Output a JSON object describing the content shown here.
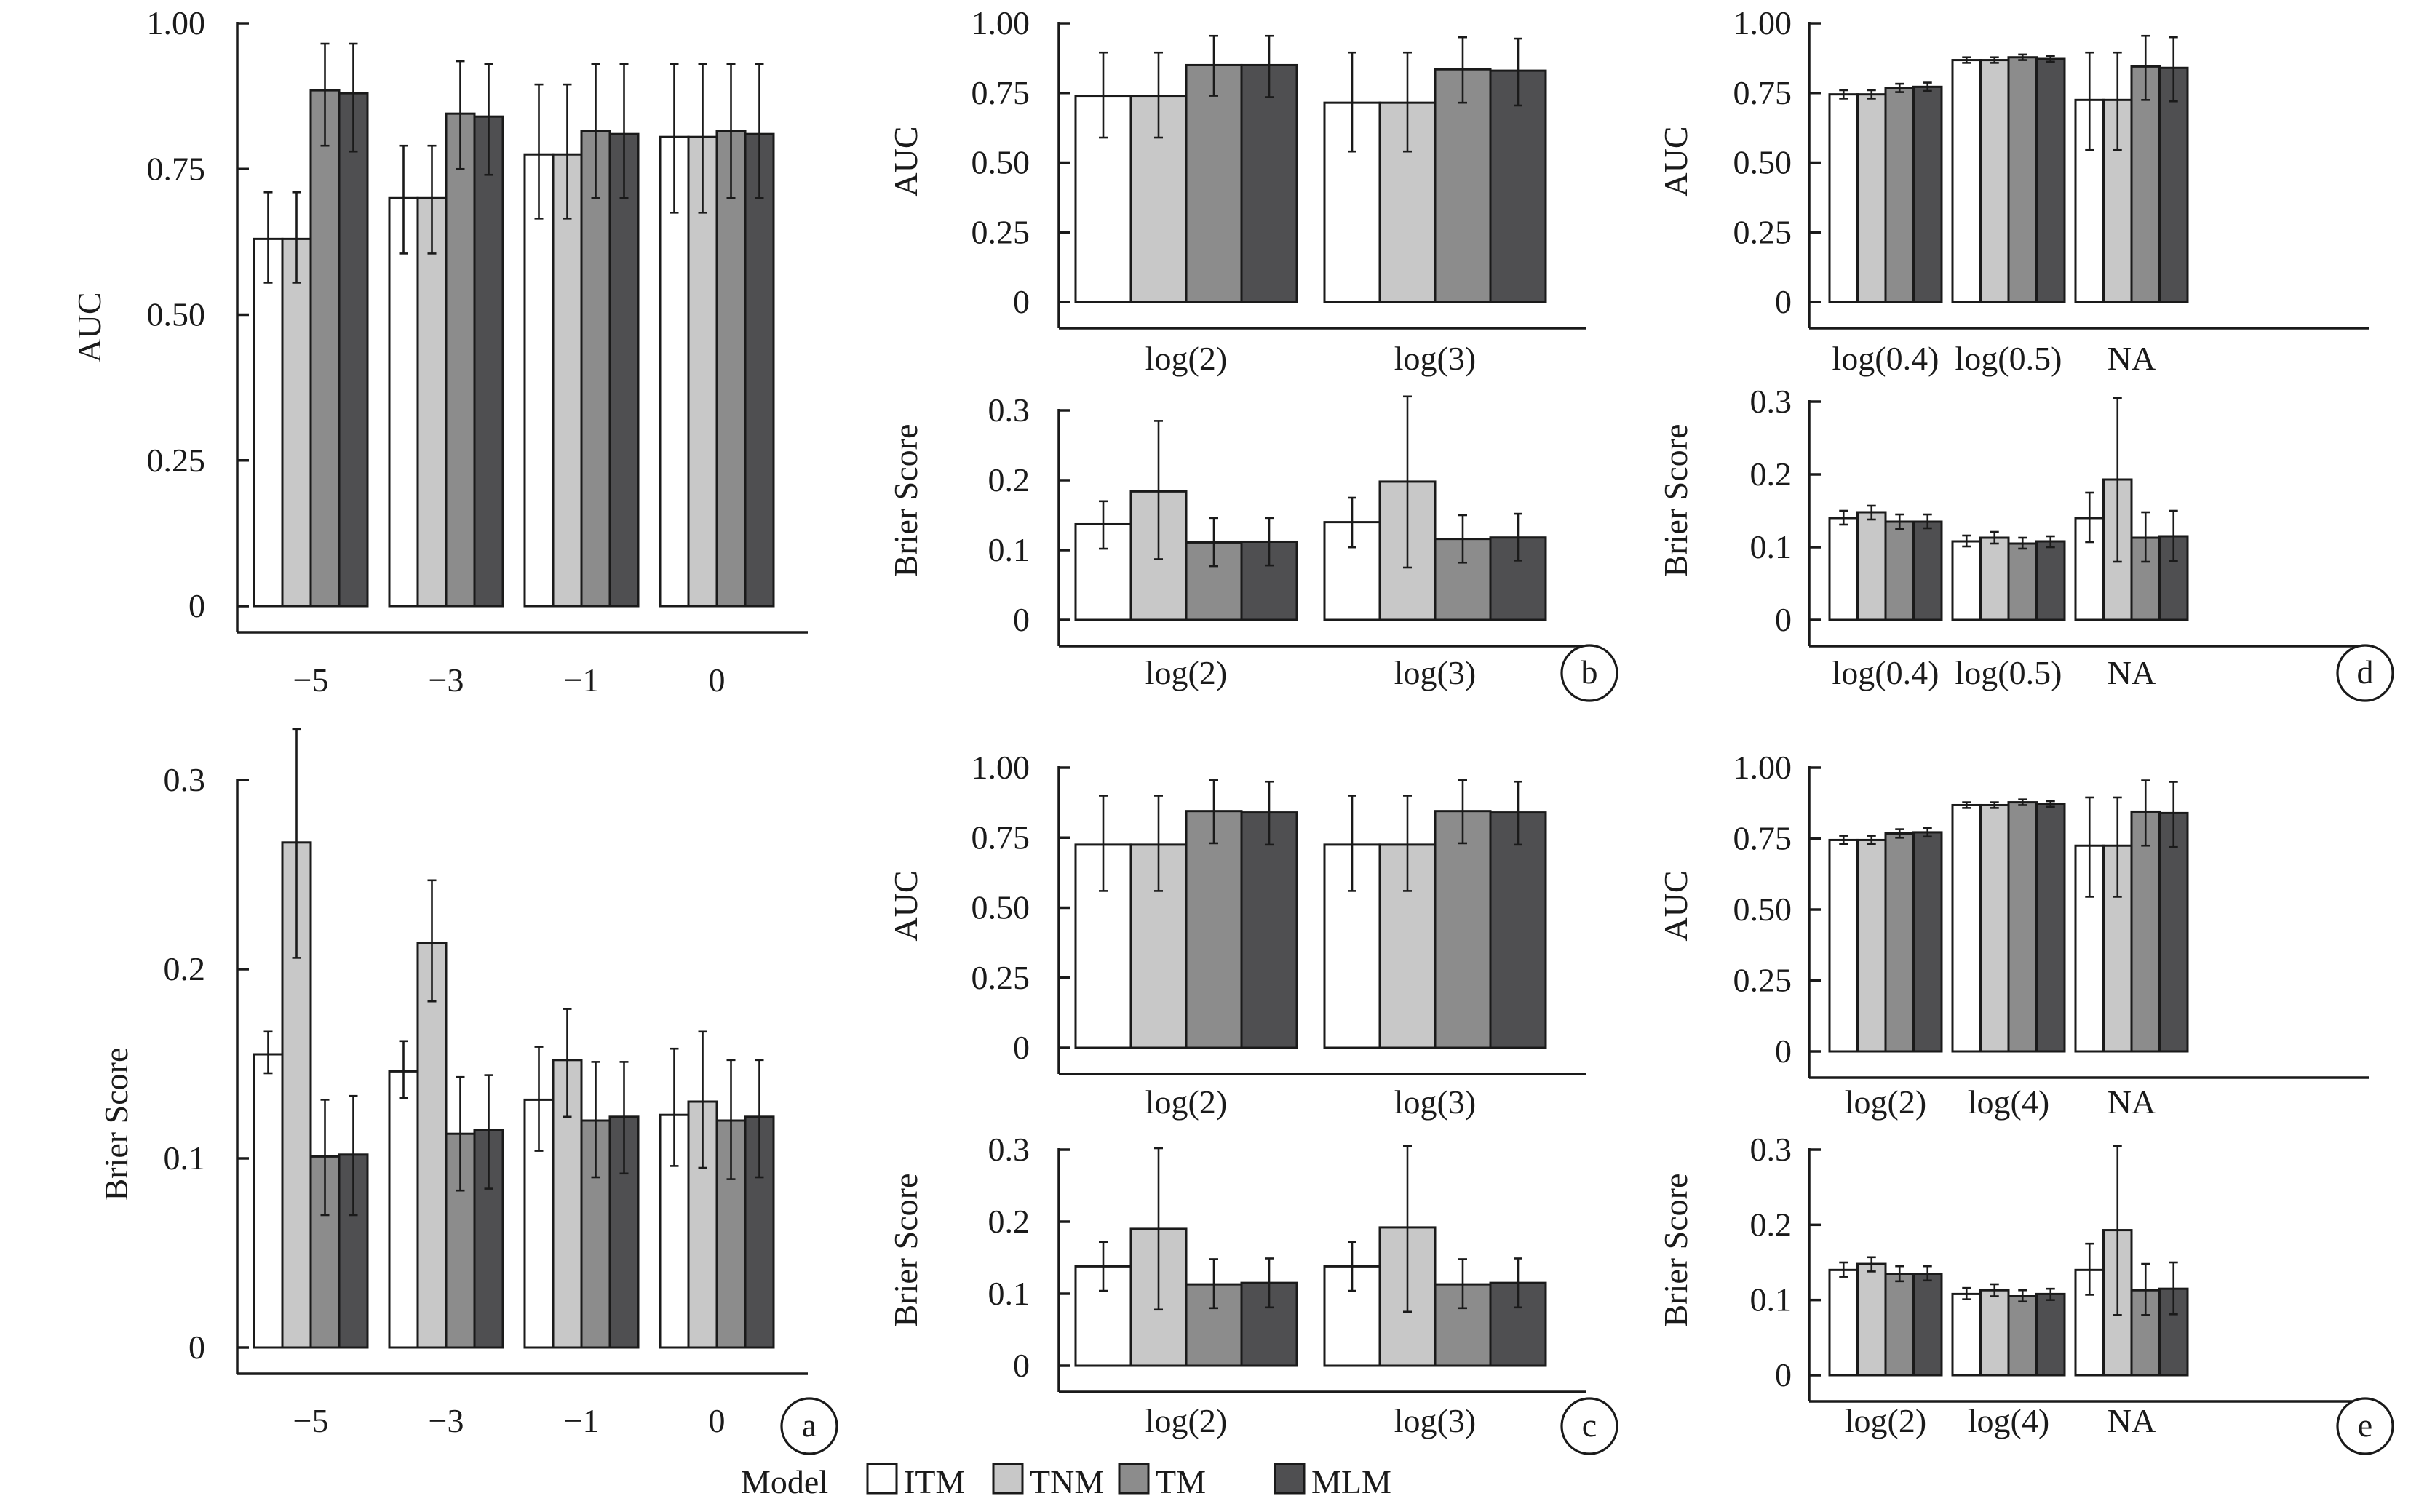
{
  "colors": {
    "ITM": "#ffffff",
    "TNM": "#c8c8c8",
    "TM": "#8c8c8c",
    "MLM": "#4f4f51"
  },
  "legend": {
    "title": "Model",
    "items": [
      "ITM",
      "TNM",
      "TM",
      "MLM"
    ]
  },
  "chart_data": [
    {
      "panel": "a",
      "metric": "AUC",
      "type": "bar",
      "ylabel": "AUC",
      "ylim": [
        0,
        1
      ],
      "yticks": [
        "0",
        "0.25",
        "0.50",
        "0.75",
        "1.00"
      ],
      "categories": [
        "−5",
        "−3",
        "−1",
        "0"
      ],
      "series": [
        {
          "name": "ITM",
          "values": [
            0.63,
            0.7,
            0.775,
            0.805
          ],
          "low": [
            0.555,
            0.605,
            0.665,
            0.675
          ],
          "high": [
            0.71,
            0.79,
            0.895,
            0.93
          ]
        },
        {
          "name": "TNM",
          "values": [
            0.63,
            0.7,
            0.775,
            0.805
          ],
          "low": [
            0.555,
            0.605,
            0.665,
            0.675
          ],
          "high": [
            0.71,
            0.79,
            0.895,
            0.93
          ]
        },
        {
          "name": "TM",
          "values": [
            0.885,
            0.845,
            0.815,
            0.815
          ],
          "low": [
            0.79,
            0.75,
            0.7,
            0.7
          ],
          "high": [
            0.965,
            0.935,
            0.93,
            0.93
          ]
        },
        {
          "name": "MLM",
          "values": [
            0.88,
            0.84,
            0.81,
            0.81
          ],
          "low": [
            0.78,
            0.74,
            0.7,
            0.7
          ],
          "high": [
            0.965,
            0.93,
            0.93,
            0.93
          ]
        }
      ]
    },
    {
      "panel": "a",
      "metric": "Brier Score",
      "type": "bar",
      "ylabel": "Brier Score",
      "ylim": [
        0,
        0.3
      ],
      "yticks": [
        "0",
        "0.1",
        "0.2",
        "0.3"
      ],
      "categories": [
        "−5",
        "−3",
        "−1",
        "0"
      ],
      "series": [
        {
          "name": "ITM",
          "values": [
            0.155,
            0.146,
            0.131,
            0.123
          ],
          "low": [
            0.145,
            0.132,
            0.104,
            0.096
          ],
          "high": [
            0.167,
            0.162,
            0.159,
            0.158
          ]
        },
        {
          "name": "TNM",
          "values": [
            0.267,
            0.214,
            0.152,
            0.13
          ],
          "low": [
            0.206,
            0.183,
            0.122,
            0.095
          ],
          "high": [
            0.327,
            0.247,
            0.179,
            0.167
          ]
        },
        {
          "name": "TM",
          "values": [
            0.101,
            0.113,
            0.12,
            0.12
          ],
          "low": [
            0.07,
            0.083,
            0.09,
            0.089
          ],
          "high": [
            0.131,
            0.143,
            0.151,
            0.152
          ]
        },
        {
          "name": "MLM",
          "values": [
            0.102,
            0.115,
            0.122,
            0.122
          ],
          "low": [
            0.07,
            0.084,
            0.092,
            0.09
          ],
          "high": [
            0.133,
            0.144,
            0.151,
            0.152
          ]
        }
      ]
    },
    {
      "panel": "b",
      "metric": "AUC",
      "type": "bar",
      "ylabel": "AUC",
      "ylim": [
        0,
        1
      ],
      "yticks": [
        "0",
        "0.25",
        "0.50",
        "0.75",
        "1.00"
      ],
      "categories": [
        "log(2)",
        "log(3)"
      ],
      "series": [
        {
          "name": "ITM",
          "values": [
            0.74,
            0.715
          ],
          "low": [
            0.59,
            0.54
          ],
          "high": [
            0.895,
            0.895
          ]
        },
        {
          "name": "TNM",
          "values": [
            0.74,
            0.715
          ],
          "low": [
            0.59,
            0.54
          ],
          "high": [
            0.895,
            0.895
          ]
        },
        {
          "name": "TM",
          "values": [
            0.85,
            0.835
          ],
          "low": [
            0.74,
            0.715
          ],
          "high": [
            0.955,
            0.95
          ]
        },
        {
          "name": "MLM",
          "values": [
            0.85,
            0.83
          ],
          "low": [
            0.735,
            0.705
          ],
          "high": [
            0.955,
            0.945
          ]
        }
      ]
    },
    {
      "panel": "b",
      "metric": "Brier Score",
      "type": "bar",
      "ylabel": "Brier Score",
      "ylim": [
        0,
        0.3
      ],
      "yticks": [
        "0",
        "0.1",
        "0.2",
        "0.3"
      ],
      "categories": [
        "log(2)",
        "log(3)"
      ],
      "series": [
        {
          "name": "ITM",
          "values": [
            0.137,
            0.14
          ],
          "low": [
            0.102,
            0.104
          ],
          "high": [
            0.17,
            0.175
          ]
        },
        {
          "name": "TNM",
          "values": [
            0.184,
            0.198
          ],
          "low": [
            0.087,
            0.075
          ],
          "high": [
            0.285,
            0.32
          ]
        },
        {
          "name": "TM",
          "values": [
            0.111,
            0.116
          ],
          "low": [
            0.077,
            0.082
          ],
          "high": [
            0.146,
            0.15
          ]
        },
        {
          "name": "MLM",
          "values": [
            0.112,
            0.118
          ],
          "low": [
            0.078,
            0.085
          ],
          "high": [
            0.146,
            0.152
          ]
        }
      ]
    },
    {
      "panel": "c",
      "metric": "AUC",
      "type": "bar",
      "ylabel": "AUC",
      "ylim": [
        0,
        1
      ],
      "yticks": [
        "0",
        "0.25",
        "0.50",
        "0.75",
        "1.00"
      ],
      "categories": [
        "log(2)",
        "log(3)"
      ],
      "series": [
        {
          "name": "ITM",
          "values": [
            0.725,
            0.725
          ],
          "low": [
            0.56,
            0.56
          ],
          "high": [
            0.9,
            0.9
          ]
        },
        {
          "name": "TNM",
          "values": [
            0.725,
            0.725
          ],
          "low": [
            0.56,
            0.56
          ],
          "high": [
            0.9,
            0.9
          ]
        },
        {
          "name": "TM",
          "values": [
            0.845,
            0.845
          ],
          "low": [
            0.73,
            0.73
          ],
          "high": [
            0.955,
            0.955
          ]
        },
        {
          "name": "MLM",
          "values": [
            0.84,
            0.84
          ],
          "low": [
            0.725,
            0.725
          ],
          "high": [
            0.95,
            0.95
          ]
        }
      ]
    },
    {
      "panel": "c",
      "metric": "Brier Score",
      "type": "bar",
      "ylabel": "Brier Score",
      "ylim": [
        0,
        0.3
      ],
      "yticks": [
        "0",
        "0.1",
        "0.2",
        "0.3"
      ],
      "categories": [
        "log(2)",
        "log(3)"
      ],
      "series": [
        {
          "name": "ITM",
          "values": [
            0.138,
            0.138
          ],
          "low": [
            0.104,
            0.104
          ],
          "high": [
            0.172,
            0.172
          ]
        },
        {
          "name": "TNM",
          "values": [
            0.19,
            0.192
          ],
          "low": [
            0.078,
            0.075
          ],
          "high": [
            0.302,
            0.305
          ]
        },
        {
          "name": "TM",
          "values": [
            0.113,
            0.113
          ],
          "low": [
            0.08,
            0.08
          ],
          "high": [
            0.148,
            0.148
          ]
        },
        {
          "name": "MLM",
          "values": [
            0.115,
            0.115
          ],
          "low": [
            0.081,
            0.081
          ],
          "high": [
            0.149,
            0.149
          ]
        }
      ]
    },
    {
      "panel": "d",
      "metric": "AUC",
      "type": "bar",
      "ylabel": "AUC",
      "ylim": [
        0,
        1
      ],
      "yticks": [
        "0",
        "0.25",
        "0.50",
        "0.75",
        "1.00"
      ],
      "categories": [
        "log(0.4)",
        "log(0.5)",
        "NA"
      ],
      "series": [
        {
          "name": "ITM",
          "values": [
            0.745,
            0.868,
            0.725
          ],
          "low": [
            0.73,
            0.858,
            0.545
          ],
          "high": [
            0.76,
            0.878,
            0.895
          ]
        },
        {
          "name": "TNM",
          "values": [
            0.745,
            0.868,
            0.725
          ],
          "low": [
            0.73,
            0.858,
            0.545
          ],
          "high": [
            0.76,
            0.878,
            0.895
          ]
        },
        {
          "name": "TM",
          "values": [
            0.768,
            0.878,
            0.845
          ],
          "low": [
            0.753,
            0.868,
            0.725
          ],
          "high": [
            0.783,
            0.888,
            0.955
          ]
        },
        {
          "name": "MLM",
          "values": [
            0.772,
            0.872,
            0.84
          ],
          "low": [
            0.757,
            0.862,
            0.72
          ],
          "high": [
            0.787,
            0.882,
            0.95
          ]
        }
      ]
    },
    {
      "panel": "d",
      "metric": "Brier Score",
      "type": "bar",
      "ylabel": "Brier Score",
      "ylim": [
        0,
        0.3
      ],
      "yticks": [
        "0",
        "0.1",
        "0.2",
        "0.3"
      ],
      "categories": [
        "log(0.4)",
        "log(0.5)",
        "NA"
      ],
      "series": [
        {
          "name": "ITM",
          "values": [
            0.14,
            0.108,
            0.14
          ],
          "low": [
            0.131,
            0.101,
            0.107
          ],
          "high": [
            0.15,
            0.116,
            0.175
          ]
        },
        {
          "name": "TNM",
          "values": [
            0.148,
            0.113,
            0.193
          ],
          "low": [
            0.138,
            0.105,
            0.08
          ],
          "high": [
            0.157,
            0.121,
            0.305
          ]
        },
        {
          "name": "TM",
          "values": [
            0.135,
            0.105,
            0.113
          ],
          "low": [
            0.125,
            0.098,
            0.08
          ],
          "high": [
            0.145,
            0.113,
            0.148
          ]
        },
        {
          "name": "MLM",
          "values": [
            0.135,
            0.108,
            0.115
          ],
          "low": [
            0.126,
            0.1,
            0.081
          ],
          "high": [
            0.145,
            0.115,
            0.15
          ]
        }
      ]
    },
    {
      "panel": "e",
      "metric": "AUC",
      "type": "bar",
      "ylabel": "AUC",
      "ylim": [
        0,
        1
      ],
      "yticks": [
        "0",
        "0.25",
        "0.50",
        "0.75",
        "1.00"
      ],
      "categories": [
        "log(2)",
        "log(4)",
        "NA"
      ],
      "series": [
        {
          "name": "ITM",
          "values": [
            0.745,
            0.868,
            0.725
          ],
          "low": [
            0.73,
            0.858,
            0.545
          ],
          "high": [
            0.76,
            0.878,
            0.895
          ]
        },
        {
          "name": "TNM",
          "values": [
            0.745,
            0.868,
            0.725
          ],
          "low": [
            0.73,
            0.858,
            0.545
          ],
          "high": [
            0.76,
            0.878,
            0.895
          ]
        },
        {
          "name": "TM",
          "values": [
            0.768,
            0.878,
            0.845
          ],
          "low": [
            0.753,
            0.868,
            0.725
          ],
          "high": [
            0.783,
            0.888,
            0.955
          ]
        },
        {
          "name": "MLM",
          "values": [
            0.772,
            0.872,
            0.84
          ],
          "low": [
            0.757,
            0.862,
            0.72
          ],
          "high": [
            0.787,
            0.882,
            0.95
          ]
        }
      ]
    },
    {
      "panel": "e",
      "metric": "Brier Score",
      "type": "bar",
      "ylabel": "Brier Score",
      "ylim": [
        0,
        0.3
      ],
      "yticks": [
        "0",
        "0.1",
        "0.2",
        "0.3"
      ],
      "categories": [
        "log(2)",
        "log(4)",
        "NA"
      ],
      "series": [
        {
          "name": "ITM",
          "values": [
            0.14,
            0.108,
            0.14
          ],
          "low": [
            0.131,
            0.101,
            0.107
          ],
          "high": [
            0.15,
            0.116,
            0.175
          ]
        },
        {
          "name": "TNM",
          "values": [
            0.148,
            0.113,
            0.193
          ],
          "low": [
            0.138,
            0.105,
            0.08
          ],
          "high": [
            0.157,
            0.121,
            0.305
          ]
        },
        {
          "name": "TM",
          "values": [
            0.135,
            0.105,
            0.113
          ],
          "low": [
            0.125,
            0.098,
            0.08
          ],
          "high": [
            0.145,
            0.113,
            0.148
          ]
        },
        {
          "name": "MLM",
          "values": [
            0.135,
            0.108,
            0.115
          ],
          "low": [
            0.126,
            0.1,
            0.081
          ],
          "high": [
            0.145,
            0.115,
            0.15
          ]
        }
      ]
    }
  ]
}
